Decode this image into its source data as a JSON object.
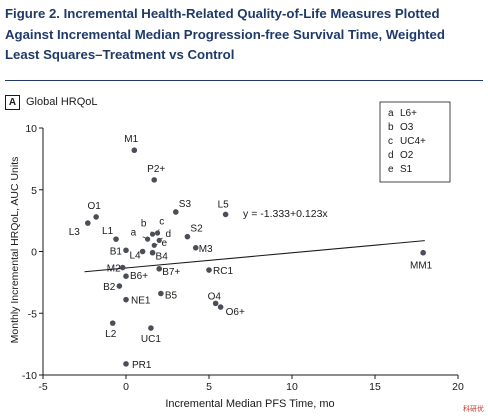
{
  "figure": {
    "title": "Figure 2. Incremental Health-Related Quality-of-Life Measures Plotted Against Incremental Median Progression-free Survival Time, Weighted Least Squares–Treatment vs Control",
    "title_color": "#1f3a68"
  },
  "panel": {
    "letter": "A",
    "name": "Global HRQoL"
  },
  "legend_box": [
    {
      "key": "a",
      "name": "L6+"
    },
    {
      "key": "b",
      "name": "O3"
    },
    {
      "key": "c",
      "name": "UC4+"
    },
    {
      "key": "d",
      "name": "O2"
    },
    {
      "key": "e",
      "name": "S1"
    }
  ],
  "chart_data": {
    "type": "scatter",
    "xlabel": "Incremental Median PFS Time, mo",
    "ylabel": "Monthly Incremental HRQoL, AUC Units",
    "xlim": [
      -5,
      20
    ],
    "ylim": [
      -10,
      10
    ],
    "xticks": [
      -5,
      0,
      5,
      10,
      15,
      20
    ],
    "yticks": [
      -10,
      -5,
      0,
      5,
      10
    ],
    "grid": false,
    "point_color": "#4a4f57",
    "line_color": "#1a1a1a",
    "regression": {
      "label": "y = -1.333+0.123x",
      "intercept": -1.333,
      "slope": 0.123,
      "x_range": [
        -2.5,
        18
      ]
    },
    "points": [
      {
        "label": "M1",
        "x": 0.5,
        "y": 8.2
      },
      {
        "label": "P2+",
        "x": 1.7,
        "y": 5.8
      },
      {
        "label": "O1",
        "x": -1.8,
        "y": 2.8
      },
      {
        "label": "L3",
        "x": -2.3,
        "y": 2.3
      },
      {
        "label": "L1",
        "x": -0.6,
        "y": 1.0
      },
      {
        "label": "S3",
        "x": 3.0,
        "y": 3.2
      },
      {
        "label": "L5",
        "x": 6.0,
        "y": 3.0
      },
      {
        "label": "S2",
        "x": 3.7,
        "y": 1.2
      },
      {
        "label": "M3",
        "x": 4.2,
        "y": 0.3
      },
      {
        "label": "b",
        "x": 1.5,
        "y": 1.6
      },
      {
        "label": "c",
        "x": 2.0,
        "y": 1.8
      },
      {
        "label": "a",
        "x": 1.0,
        "y": 1.2
      },
      {
        "label": "d",
        "x": 2.2,
        "y": 1.1
      },
      {
        "label": "e",
        "x": 1.9,
        "y": 0.6
      },
      {
        "label": "B1",
        "x": 0.0,
        "y": 0.1
      },
      {
        "label": "L4",
        "x": 1.0,
        "y": 0.0
      },
      {
        "label": "B4",
        "x": 1.6,
        "y": -0.1
      },
      {
        "label": "M2",
        "x": -0.2,
        "y": -1.3
      },
      {
        "label": "B6+",
        "x": 0.0,
        "y": -2.0
      },
      {
        "label": "B7+",
        "x": 2.0,
        "y": -1.4
      },
      {
        "label": "RC1",
        "x": 5.0,
        "y": -1.5
      },
      {
        "label": "B2",
        "x": -0.4,
        "y": -2.8
      },
      {
        "label": "B5",
        "x": 2.1,
        "y": -3.4
      },
      {
        "label": "NE1",
        "x": 0.0,
        "y": -3.9
      },
      {
        "label": "O4",
        "x": 5.4,
        "y": -4.2
      },
      {
        "label": "O6+",
        "x": 5.7,
        "y": -4.5
      },
      {
        "label": "L2",
        "x": -0.8,
        "y": -5.8
      },
      {
        "label": "UC1",
        "x": 1.5,
        "y": -6.2
      },
      {
        "label": "PR1",
        "x": 0.0,
        "y": -9.1
      },
      {
        "label": "MM1",
        "x": 17.9,
        "y": -0.1
      }
    ]
  },
  "watermark": "科研优"
}
